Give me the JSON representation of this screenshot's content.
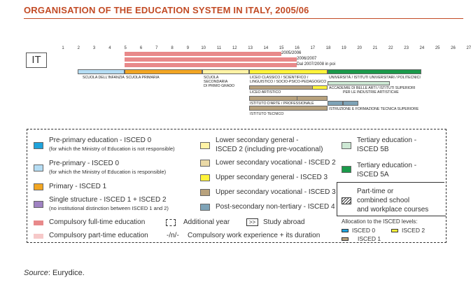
{
  "title": "ORGANISATION OF THE EDUCATION SYSTEM IN ITALY, 2005/06",
  "country_code": "IT",
  "ages": [
    "1",
    "2",
    "3",
    "4",
    "5",
    "6",
    "7",
    "8",
    "9",
    "10",
    "11",
    "12",
    "13",
    "14",
    "15",
    "16",
    "17",
    "18",
    "19",
    "20",
    "21",
    "22",
    "23",
    "24",
    "25",
    "26",
    "27"
  ],
  "compulsory": {
    "line1": "2005/2006",
    "line2": "2006/2007",
    "line3": "Dal 2007/2008 in poi"
  },
  "programmes": {
    "infanzia": "SCUOLA DELL'INFANZIA",
    "primaria": "SCUOLA PRIMARIA",
    "secondaria_line1": "SCUOLA",
    "secondaria_line2": "SECONDARIA",
    "secondaria_line3": "DI PRIMO GRADO",
    "liceo_line1": "LICEO CLASSICO / SCIENTIFICO /",
    "liceo_line2": "LINGUISTICO / SOCIO-PSICO-PEDAGOGICO",
    "universita": "UNIVERSITÀ / ISTITUTI UNIVERSITARI / POLITECNICI",
    "accademie_line1": "ACCADEMIE DI BELLE ARTI / ISTITUTI SUPERIORI",
    "accademie_line2": "PER LE INDUSTRIE ARTISTICHE",
    "liceo_artistico": "LICEO ARTISTICO",
    "istituto_arte": "ISTITUTO D'ARTE / PROFESSIONALE",
    "istruzione": "ISTRUZIONE E FORMAZIONE TECNICA SUPERIORE",
    "istituto_tecnico": "ISTITUTO TECNICO"
  },
  "legend": {
    "preprimary_a": "Pre-primary education - ISCED 0",
    "preprimary_a_sub": "(for which the Ministry of Education is not responsible)",
    "preprimary_b": "Pre-primary  - ISCED 0",
    "preprimary_b_sub": "(for which the Ministry of Education is responsible)",
    "primary": "Primary - ISCED 1",
    "single_structure": "Single structure - ISCED 1 + ISCED 2",
    "single_structure_sub": "(no institutional distinction between ISCED 1 and 2)",
    "lower_general_line1": "Lower secondary general -",
    "lower_general_line2": "ISCED 2 (including pre-vocational)",
    "lower_vocational": "Lower secondary vocational - ISCED 2",
    "upper_general": "Upper secondary general - ISCED 3",
    "upper_vocational": "Upper secondary vocational - ISCED 3",
    "post_secondary": "Post-secondary non-tertiary - ISCED 4",
    "tertiary_5b_line1": "Tertiary education -",
    "tertiary_5b_line2": "ISCED 5B",
    "tertiary_5a_line1": "Tertiary education -",
    "tertiary_5a_line2": "ISCED 5A",
    "part_time_line1": "Part-time or",
    "part_time_line2": "combined school",
    "part_time_line3": "and workplace courses",
    "compulsory_full": "Compulsory full-time education",
    "compulsory_part": "Compulsory part-time education",
    "additional_year": "Additional year",
    "study_abroad_symbol": ">>",
    "study_abroad": "Study abroad",
    "work_experience_symbol": "-/n/-",
    "work_experience": "Compulsory work experience + its duration",
    "allocation_title": "Allocation to the ISCED levels:",
    "isced0": "ISCED 0",
    "isced1": "ISCED 1",
    "isced2": "ISCED 2"
  },
  "colors": {
    "title": "#c24b25",
    "compulsory_full": "#e8898a",
    "compulsory_part": "#f6c9c9",
    "preprimary_not_ministry": "#1ea3dc",
    "preprimary_ministry": "#b5ddf4",
    "primary": "#f2a623",
    "single_structure": "#9f82c2",
    "lower_general": "#fff3a6",
    "lower_vocational": "#ead9a6",
    "upper_general": "#fff33a",
    "upper_vocational": "#b8a27d",
    "post_secondary": "#7ea3b7",
    "tertiary_5b": "#cde8d4",
    "tertiary_5a": "#1a9a4a"
  },
  "source_label": "Source",
  "source_value": ": Eurydice."
}
